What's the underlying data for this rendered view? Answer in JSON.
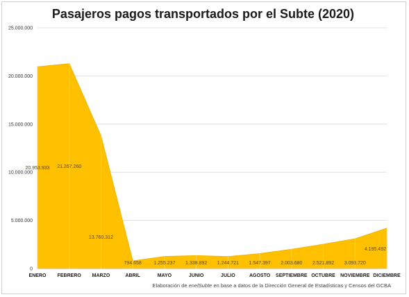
{
  "chart_data": {
    "type": "area",
    "title": "Pasajeros pagos transportados por el Subte (2020)",
    "xlabel": "",
    "ylabel": "",
    "categories": [
      "ENERO",
      "FEBRERO",
      "MARZO",
      "ABRIL",
      "MAYO",
      "JUNIO",
      "JULIO",
      "AGOSTO",
      "SEPTIEMBRE",
      "OCTUBRE",
      "NOVIEMBRE",
      "DICIEMBRE"
    ],
    "values": [
      20953933,
      21267260,
      13760312,
      794658,
      1255237,
      1338892,
      1244721,
      1547397,
      2003680,
      2521892,
      3093720,
      4195492
    ],
    "data_labels": [
      "20.953.933",
      "21.267.260",
      "13.760.312",
      "794.658",
      "1.255.237",
      "1.338.892",
      "1.244.721",
      "1.547.397",
      "2.003.680",
      "2.521.892",
      "3.093.720",
      "4.195.492"
    ],
    "ylim": [
      0,
      25000000
    ],
    "yticks": [
      0,
      5000000,
      10000000,
      15000000,
      20000000,
      25000000
    ],
    "ytick_labels": [
      "0",
      "5.000.000",
      "10.000.000",
      "15.000.000",
      "20.000.000",
      "25.000.000"
    ],
    "grid": true,
    "legend": "none",
    "colors": {
      "fill": "#FFC000",
      "edge": "#F2B400",
      "grid": "#d9d9d9",
      "month_line": "#f7d76a"
    }
  },
  "footnote": {
    "prefix": "Elaboración de ",
    "source_name": "enelSubte",
    "suffix": " en base a datos de la Dirección General de Estadísticas y Censos del GCBA"
  }
}
